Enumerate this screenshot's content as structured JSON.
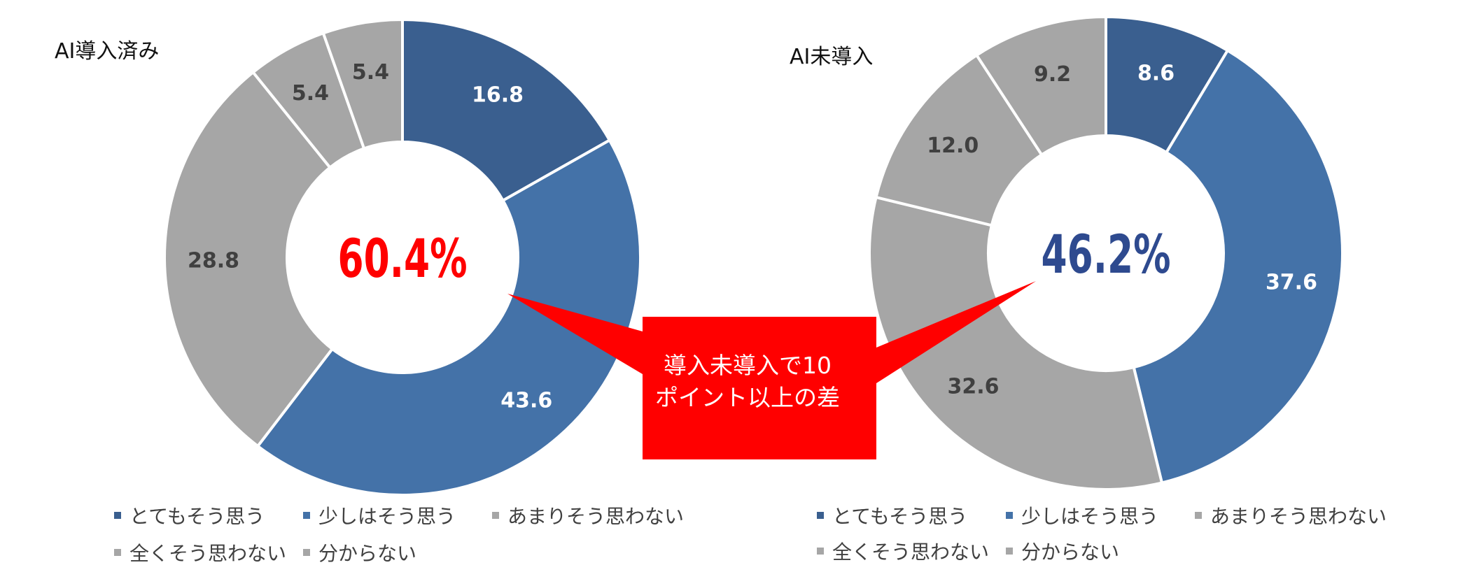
{
  "chart_data": [
    {
      "type": "donut",
      "title": "AI導入済み",
      "center_label": "60.4%",
      "center_color": "#ff0000",
      "categories": [
        "とてもそう思う",
        "少しはそう思う",
        "あまりそう思わない",
        "全くそう思わない",
        "分からない"
      ],
      "values": [
        16.8,
        43.6,
        28.8,
        5.4,
        5.4
      ],
      "value_labels": [
        "16.8",
        "43.6",
        "28.8",
        "5.4",
        "5.4"
      ],
      "colors": [
        "#3a5f8f",
        "#4472a8",
        "#a6a6a6",
        "#a6a6a6",
        "#a6a6a6"
      ],
      "label_colors": [
        "#ffffff",
        "#ffffff",
        "#404040",
        "#404040",
        "#404040"
      ]
    },
    {
      "type": "donut",
      "title": "AI未導入",
      "center_label": "46.2%",
      "center_color": "#2e4a8f",
      "categories": [
        "とてもそう思う",
        "少しはそう思う",
        "あまりそう思わない",
        "全くそう思わない",
        "分からない"
      ],
      "values": [
        8.6,
        37.6,
        32.6,
        12.0,
        9.2
      ],
      "value_labels": [
        "8.6",
        "37.6",
        "32.6",
        "12.0",
        "9.2"
      ],
      "colors": [
        "#3a5f8f",
        "#4472a8",
        "#a6a6a6",
        "#a6a6a6",
        "#a6a6a6"
      ],
      "label_colors": [
        "#ffffff",
        "#ffffff",
        "#404040",
        "#404040",
        "#404040"
      ]
    }
  ],
  "legend": {
    "items": [
      {
        "label": "とてもそう思う",
        "color": "#3a5f8f"
      },
      {
        "label": "少しはそう思う",
        "color": "#4472a8"
      },
      {
        "label": "あまりそう思わない",
        "color": "#a6a6a6"
      },
      {
        "label": "全くそう思わない",
        "color": "#a6a6a6"
      },
      {
        "label": "分からない",
        "color": "#a6a6a6"
      }
    ]
  },
  "callout": {
    "line1": "導入未導入で10",
    "line2": "ポイント以上の差",
    "color": "#ff0000"
  }
}
